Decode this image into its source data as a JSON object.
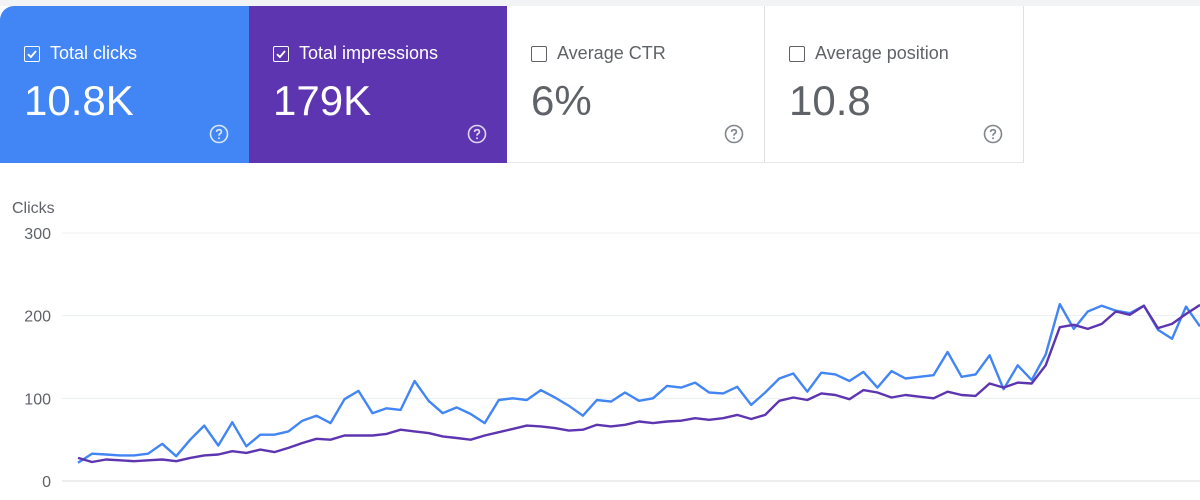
{
  "metrics": [
    {
      "label": "Total clicks",
      "value": "10.8K",
      "checked": true,
      "color": "#4285f4"
    },
    {
      "label": "Total impressions",
      "value": "179K",
      "checked": true,
      "color": "#5e35b1"
    },
    {
      "label": "Average CTR",
      "value": "6%",
      "checked": false,
      "color": "#ffffff"
    },
    {
      "label": "Average position",
      "value": "10.8",
      "checked": false,
      "color": "#ffffff"
    }
  ],
  "icons": {
    "checked": "check-box-icon",
    "unchecked": "check-box-outline-icon",
    "help": "help-circle-icon"
  },
  "chart_data": {
    "type": "line",
    "ylabel": "Clicks",
    "ylim": [
      0,
      300
    ],
    "yticks": [
      0,
      100,
      200,
      300
    ],
    "grid": true,
    "series": [
      {
        "metric": "Total clicks",
        "color": "#4285f4",
        "values": [
          22,
          33,
          32,
          31,
          31,
          33,
          45,
          30,
          50,
          67,
          43,
          71,
          42,
          56,
          56,
          60,
          73,
          79,
          70,
          99,
          109,
          82,
          88,
          86,
          121,
          97,
          82,
          89,
          81,
          70,
          98,
          100,
          98,
          110,
          101,
          91,
          79,
          98,
          96,
          107,
          97,
          100,
          115,
          113,
          119,
          107,
          106,
          114,
          92,
          107,
          124,
          130,
          108,
          131,
          129,
          121,
          132,
          113,
          133,
          124,
          126,
          128,
          156,
          126,
          129,
          152,
          111,
          140,
          122,
          153,
          214,
          184,
          205,
          212,
          206,
          203,
          212,
          183,
          172,
          211,
          187
        ],
        "ylim": [
          0,
          300
        ]
      },
      {
        "metric": "Total impressions",
        "color": "#5e35b1",
        "values": [
          28,
          23,
          26,
          25,
          24,
          25,
          26,
          24,
          28,
          31,
          32,
          36,
          34,
          38,
          35,
          40,
          46,
          51,
          50,
          55,
          55,
          55,
          57,
          62,
          60,
          58,
          54,
          52,
          50,
          55,
          59,
          63,
          67,
          66,
          64,
          61,
          62,
          68,
          66,
          68,
          72,
          70,
          72,
          73,
          76,
          74,
          76,
          80,
          75,
          80,
          97,
          101,
          98,
          106,
          104,
          99,
          110,
          107,
          101,
          104,
          102,
          100,
          108,
          104,
          103,
          118,
          113,
          119,
          118,
          140,
          186,
          189,
          184,
          190,
          205,
          201,
          212,
          185,
          190,
          202,
          213
        ],
        "ylim": [
          0,
          300
        ]
      }
    ]
  }
}
